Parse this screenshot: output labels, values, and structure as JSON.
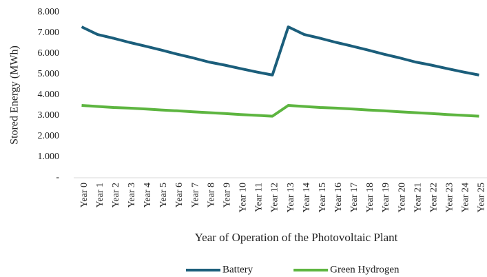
{
  "chart_data": {
    "type": "line",
    "y_label": "Stored Energy (MWh)",
    "x_label": "Year of Operation of the Photovoltaic Plant",
    "categories": [
      "Year 0",
      "Year 1",
      "Year 2",
      "Year 3",
      "Year 4",
      "Year 5",
      "Year 6",
      "Year 7",
      "Year 8",
      "Year 9",
      "Year 10",
      "Year 11",
      "Year 12",
      "Year 13",
      "Year 14",
      "Year 15",
      "Year 16",
      "Year 17",
      "Year 18",
      "Year 19",
      "Year 20",
      "Year 21",
      "Year 22",
      "Year 23",
      "Year 24",
      "Year 25"
    ],
    "series": [
      {
        "name": "Battery",
        "color": "#1b5e7b",
        "values": [
          7.3,
          6.93,
          6.75,
          6.55,
          6.37,
          6.18,
          5.98,
          5.8,
          5.6,
          5.45,
          5.28,
          5.12,
          4.97,
          7.3,
          6.93,
          6.75,
          6.55,
          6.37,
          6.18,
          5.98,
          5.8,
          5.6,
          5.45,
          5.28,
          5.12,
          4.97
        ]
      },
      {
        "name": "Green Hydrogen",
        "color": "#5db540",
        "values": [
          3.5,
          3.45,
          3.4,
          3.37,
          3.33,
          3.28,
          3.24,
          3.19,
          3.15,
          3.11,
          3.06,
          3.02,
          2.98,
          3.5,
          3.45,
          3.4,
          3.37,
          3.33,
          3.28,
          3.24,
          3.19,
          3.15,
          3.11,
          3.06,
          3.02,
          2.98
        ]
      }
    ],
    "ylim": [
      0,
      8
    ],
    "yticks": [
      {
        "value": 0,
        "label": "-"
      },
      {
        "value": 1,
        "label": "1.000"
      },
      {
        "value": 2,
        "label": "2.000"
      },
      {
        "value": 3,
        "label": "3.000"
      },
      {
        "value": 4,
        "label": "4.000"
      },
      {
        "value": 5,
        "label": "5.000"
      },
      {
        "value": 6,
        "label": "6.000"
      },
      {
        "value": 7,
        "label": "7.000"
      },
      {
        "value": 8,
        "label": "8.000"
      }
    ],
    "grid": false,
    "legend": "bottom"
  }
}
